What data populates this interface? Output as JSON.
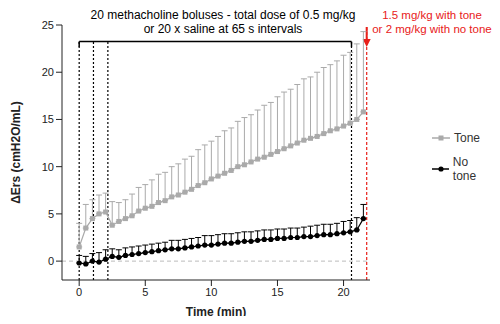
{
  "chart_data": {
    "type": "line",
    "x_label": "Time (min)",
    "y_label": "ΔErs (cmH2O/mL)",
    "xlim": [
      -1.3,
      22
    ],
    "xticks": [
      0,
      5,
      10,
      15,
      20
    ],
    "ylim": [
      -2,
      25
    ],
    "yticks": [
      0,
      5,
      10,
      15,
      20,
      25
    ],
    "grid": false,
    "legend": "right",
    "hline": 0,
    "annotations": [
      {
        "text": "20 methacholine boluses - total dose of 0.5 mg/kg",
        "color": "#000000"
      },
      {
        "text": "or 20 x saline at 65 s intervals",
        "color": "#000000"
      },
      {
        "text": "1.5 mg/kg with tone",
        "color": "#e8201a"
      },
      {
        "text": "or 2 mg/kg with no tone",
        "color": "#e8201a"
      }
    ],
    "bolus_lines": [
      0,
      1.08,
      2.17,
      20.6
    ],
    "final_dose_line": 21.75,
    "series": [
      {
        "name": "Tone",
        "color": "#aaaaaa",
        "marker": "square",
        "x": [
          0,
          0.5,
          1,
          1.5,
          2,
          2.5,
          3,
          3.5,
          4,
          4.5,
          5,
          5.5,
          6,
          6.5,
          7,
          7.5,
          8,
          8.5,
          9,
          9.5,
          10,
          10.5,
          11,
          11.5,
          12,
          12.5,
          13,
          13.5,
          14,
          14.5,
          15,
          15.5,
          16,
          16.5,
          17,
          17.5,
          18,
          18.5,
          19,
          19.5,
          20,
          20.5,
          21,
          21.5
        ],
        "values": [
          1.5,
          3.5,
          4.5,
          5,
          5.2,
          3.8,
          4.2,
          4.5,
          4.8,
          5.3,
          5.6,
          5.8,
          6.2,
          6.4,
          6.8,
          7,
          7.3,
          7.6,
          8,
          8.3,
          8.7,
          9,
          9.3,
          9.6,
          10,
          10.2,
          10.5,
          10.8,
          11,
          11.3,
          11.6,
          11.9,
          12.2,
          12.5,
          12.8,
          13,
          13.2,
          13.5,
          13.8,
          14,
          14.3,
          14.6,
          15,
          15.8
        ],
        "errors": [
          2.5,
          2.5,
          2,
          2,
          2,
          2.5,
          2,
          2,
          2.3,
          2.5,
          2.5,
          2.8,
          3,
          3,
          3.2,
          3.3,
          3.5,
          3.5,
          3.8,
          4,
          4,
          4.2,
          4.5,
          4.5,
          4.8,
          5,
          5,
          5.2,
          5.5,
          5.5,
          5.8,
          6,
          6,
          6.2,
          6.5,
          6.5,
          6.8,
          7,
          7,
          7.2,
          7.5,
          7.5,
          8,
          8.5
        ]
      },
      {
        "name": "No tone",
        "color": "#000000",
        "marker": "circle",
        "x": [
          0,
          0.5,
          1,
          1.5,
          2,
          2.5,
          3,
          3.5,
          4,
          4.5,
          5,
          5.5,
          6,
          6.5,
          7,
          7.5,
          8,
          8.5,
          9,
          9.5,
          10,
          10.5,
          11,
          11.5,
          12,
          12.5,
          13,
          13.5,
          14,
          14.5,
          15,
          15.5,
          16,
          16.5,
          17,
          17.5,
          18,
          18.5,
          19,
          19.5,
          20,
          20.5,
          21,
          21.5
        ],
        "values": [
          -0.2,
          -0.3,
          0,
          -0.1,
          0.2,
          0.5,
          0.4,
          0.6,
          0.7,
          0.8,
          0.9,
          1,
          1.1,
          1.2,
          1.3,
          1.3,
          1.4,
          1.5,
          1.6,
          1.7,
          1.7,
          1.8,
          1.9,
          1.9,
          2,
          2.1,
          2.1,
          2.2,
          2.3,
          2.3,
          2.4,
          2.4,
          2.5,
          2.5,
          2.6,
          2.6,
          2.7,
          2.8,
          2.8,
          2.9,
          3,
          3.1,
          3.3,
          4.5
        ],
        "errors": [
          0.8,
          0.8,
          0.8,
          1,
          1,
          0.8,
          0.8,
          0.8,
          0.8,
          0.8,
          0.8,
          0.8,
          0.8,
          0.8,
          0.9,
          0.9,
          0.9,
          0.9,
          0.9,
          1,
          1,
          1,
          1,
          1,
          1,
          1,
          1,
          1,
          1,
          1,
          1,
          1,
          1,
          1,
          1,
          1.1,
          1.1,
          1.1,
          1.1,
          1.1,
          1.2,
          1.2,
          1.3,
          1.5
        ]
      }
    ]
  }
}
